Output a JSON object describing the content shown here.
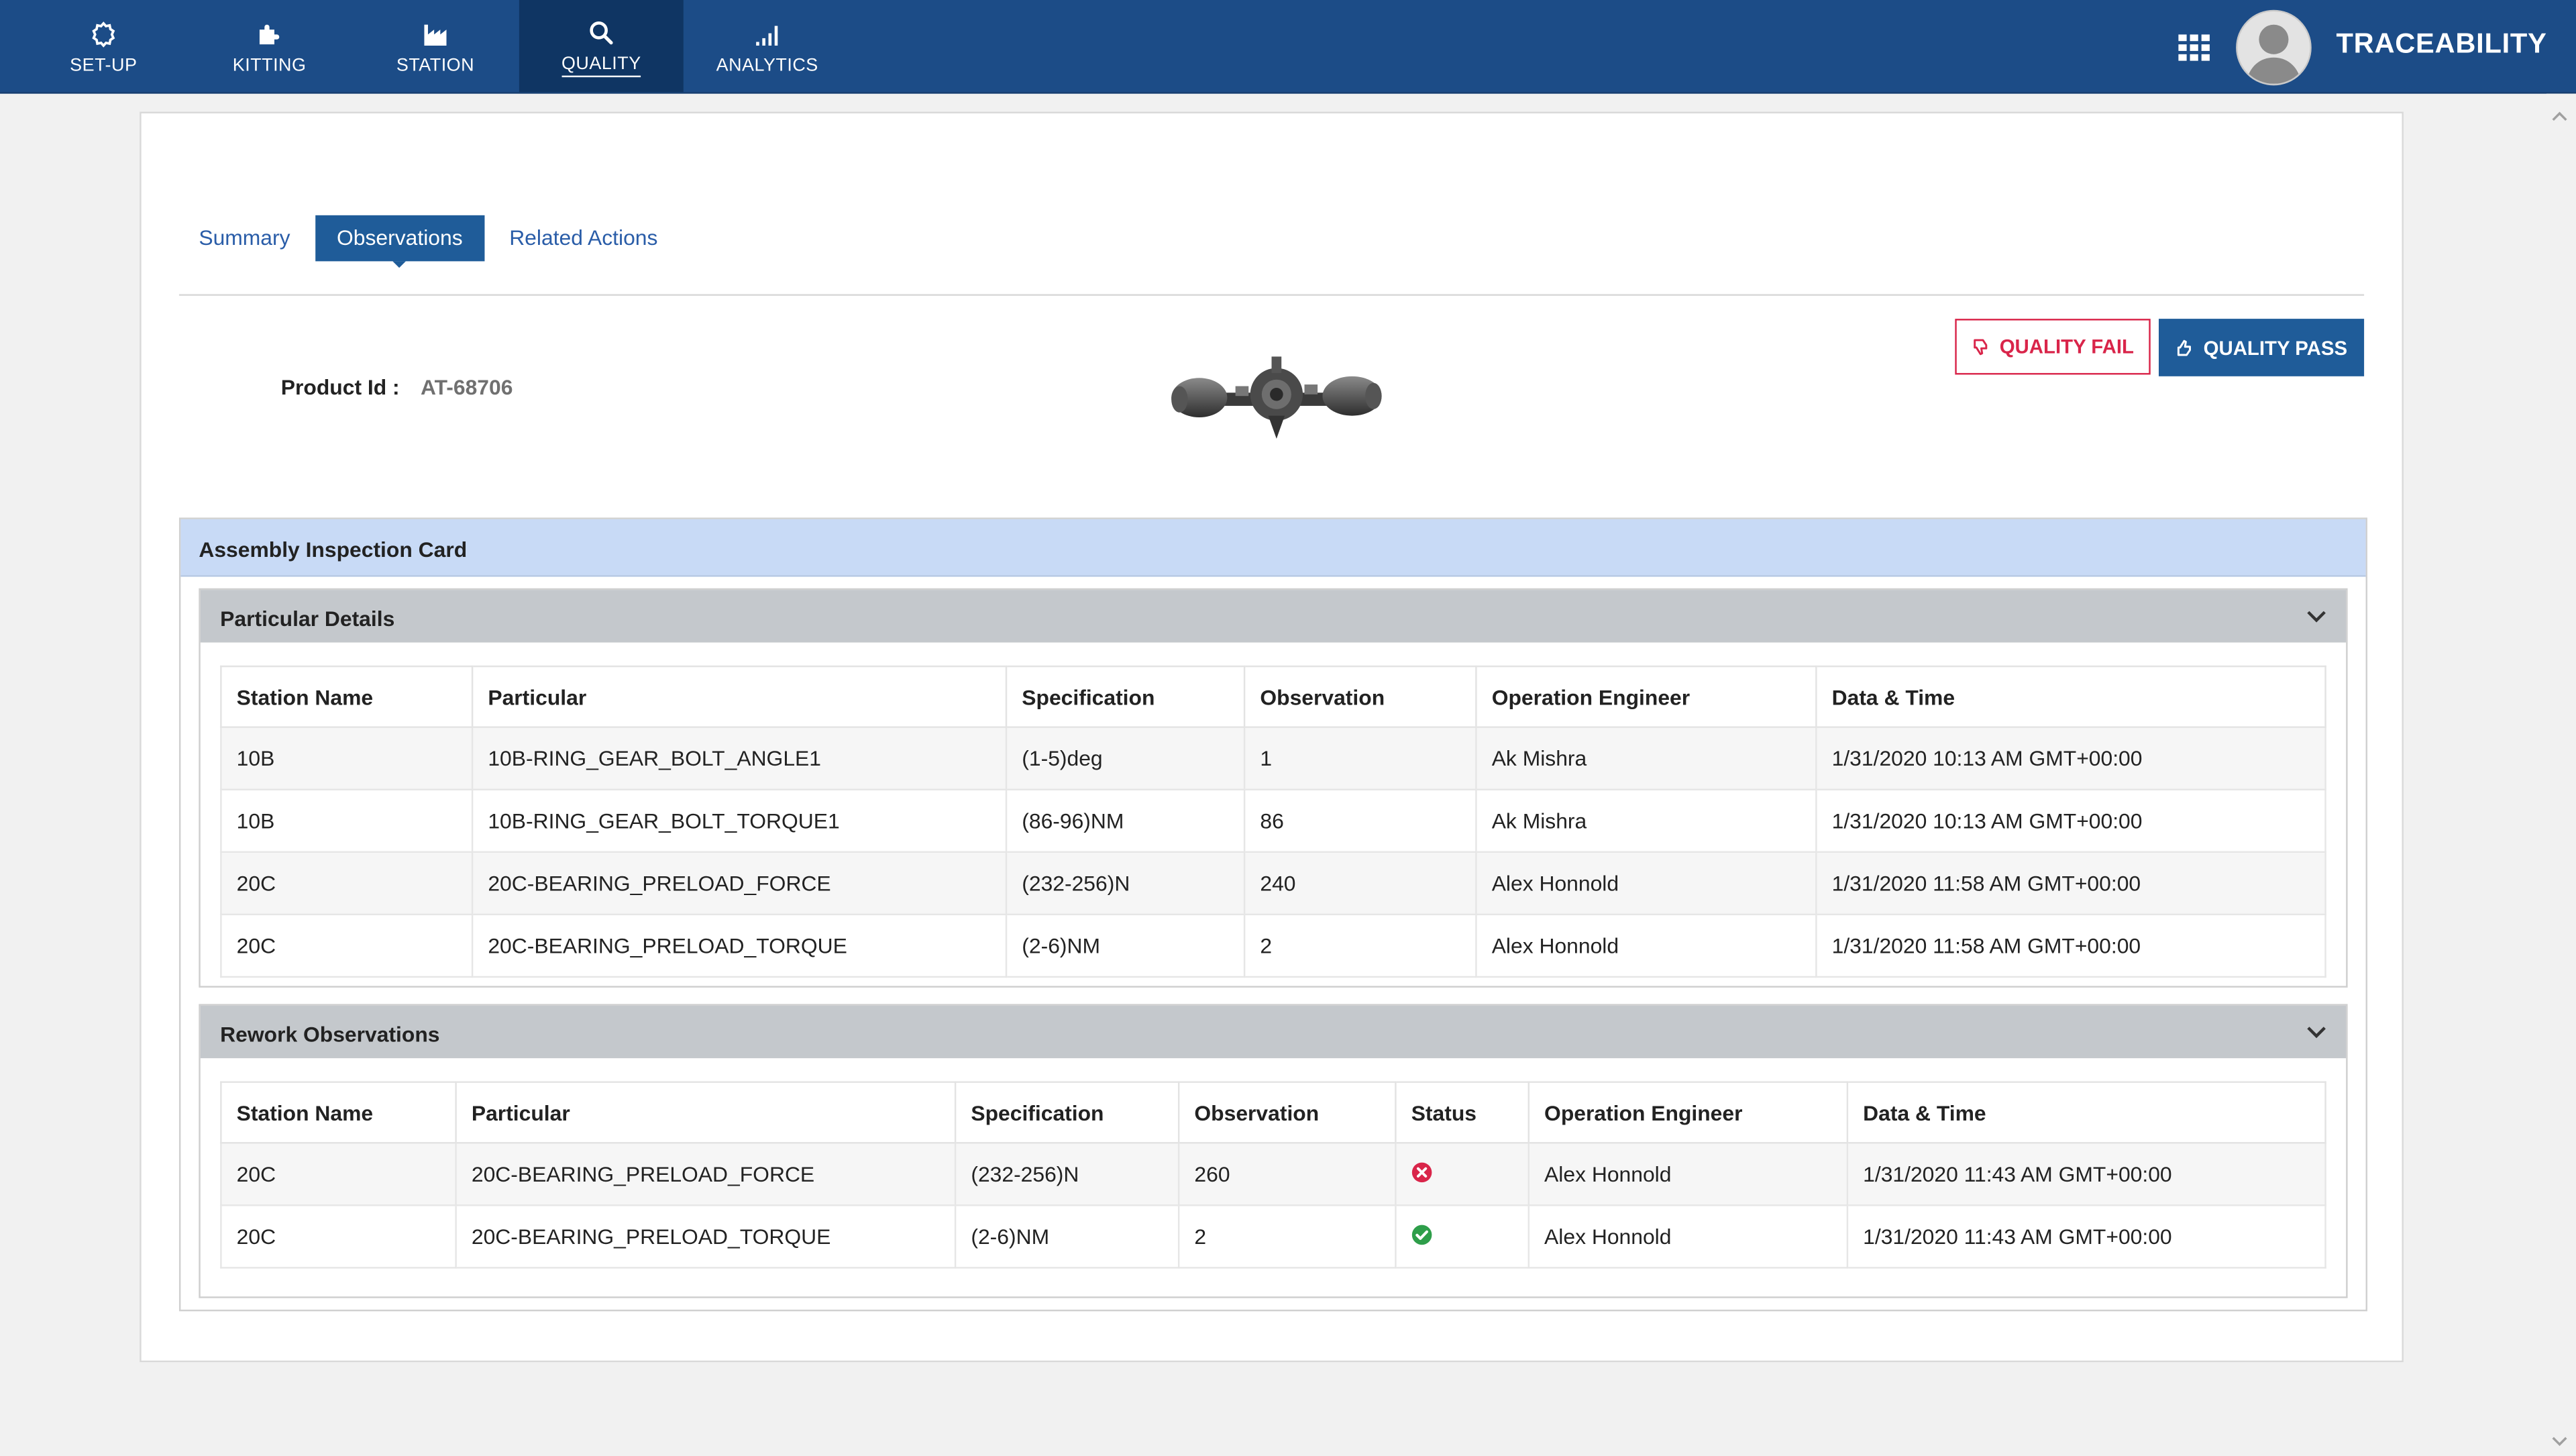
{
  "nav": {
    "items": [
      {
        "label": "SET-UP",
        "icon": "gear-icon"
      },
      {
        "label": "KITTING",
        "icon": "puzzle-icon"
      },
      {
        "label": "STATION",
        "icon": "factory-icon"
      },
      {
        "label": "QUALITY",
        "icon": "search-icon",
        "active": true
      },
      {
        "label": "ANALYTICS",
        "icon": "signal-bars-icon"
      }
    ],
    "brand": "TRACEABILITY"
  },
  "tabs": [
    {
      "label": "Summary"
    },
    {
      "label": "Observations",
      "active": true
    },
    {
      "label": "Related Actions"
    }
  ],
  "product": {
    "label": "Product Id :",
    "value": "AT-68706"
  },
  "actions": {
    "fail_label": "QUALITY FAIL",
    "pass_label": "QUALITY PASS"
  },
  "card": {
    "title": "Assembly Inspection Card"
  },
  "particular": {
    "title": "Particular Details",
    "headers": [
      "Station Name",
      "Particular",
      "Specification",
      "Observation",
      "Operation Engineer",
      "Data & Time"
    ],
    "rows": [
      [
        "10B",
        "10B-RING_GEAR_BOLT_ANGLE1",
        "(1-5)deg",
        "1",
        "Ak Mishra",
        "1/31/2020 10:13 AM GMT+00:00"
      ],
      [
        "10B",
        "10B-RING_GEAR_BOLT_TORQUE1",
        "(86-96)NM",
        "86",
        "Ak Mishra",
        "1/31/2020 10:13 AM GMT+00:00"
      ],
      [
        "20C",
        "20C-BEARING_PRELOAD_FORCE",
        "(232-256)N",
        "240",
        "Alex Honnold",
        "1/31/2020 11:58 AM GMT+00:00"
      ],
      [
        "20C",
        "20C-BEARING_PRELOAD_TORQUE",
        "(2-6)NM",
        "2",
        "Alex Honnold",
        "1/31/2020 11:58 AM GMT+00:00"
      ]
    ]
  },
  "rework": {
    "title": "Rework Observations",
    "headers": [
      "Station Name",
      "Particular",
      "Specification",
      "Observation",
      "Status",
      "Operation Engineer",
      "Data & Time"
    ],
    "rows": [
      [
        "20C",
        "20C-BEARING_PRELOAD_FORCE",
        "(232-256)N",
        "260",
        "fail",
        "Alex Honnold",
        "1/31/2020 11:43 AM GMT+00:00"
      ],
      [
        "20C",
        "20C-BEARING_PRELOAD_TORQUE",
        "(2-6)NM",
        "2",
        "pass",
        "Alex Honnold",
        "1/31/2020 11:43 AM GMT+00:00"
      ]
    ]
  },
  "colors": {
    "nav_bg": "#1c4c87",
    "accent": "#1f5c99",
    "fail": "#d9254a",
    "pass": "#2e9e4a",
    "card_header": "#c8daf6"
  }
}
